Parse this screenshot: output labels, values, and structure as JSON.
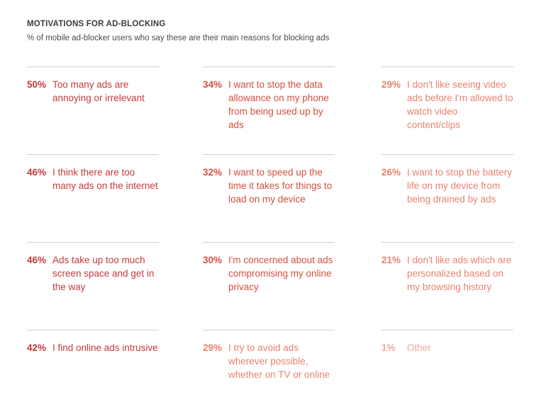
{
  "chart_data": {
    "type": "table",
    "title": "MOTIVATIONS FOR AD-BLOCKING",
    "subtitle": "% of mobile ad-blocker users who say these are their main reasons for blocking ads",
    "items": [
      {
        "value": "50%",
        "label": "Too many ads are annoying or irrelevant",
        "color": "#c23b3b"
      },
      {
        "value": "34%",
        "label": "I want to stop the data allowance on my phone from being used up by ads",
        "color": "#d2503f"
      },
      {
        "value": "29%",
        "label": "I don't like seeing video ads before I'm allowed to watch video content/clips",
        "color": "#e8836f"
      },
      {
        "value": "46%",
        "label": "I think there are too many ads on the internet",
        "color": "#c23b3b"
      },
      {
        "value": "32%",
        "label": "I want to speed up the time it takes for things to load on my device",
        "color": "#d2503f"
      },
      {
        "value": "26%",
        "label": "I want to stop the battery life on my device from being drained by ads",
        "color": "#e8836f"
      },
      {
        "value": "46%",
        "label": "Ads take up too much screen space and get in the way",
        "color": "#c23b3b"
      },
      {
        "value": "30%",
        "label": "I'm concerned about ads compromising my online privacy",
        "color": "#d2503f"
      },
      {
        "value": "21%",
        "label": "I don't like ads which are personalized based on my browsing history",
        "color": "#e8836f"
      },
      {
        "value": "42%",
        "label": "I find online ads intrusive",
        "color": "#c23b3b"
      },
      {
        "value": "29%",
        "label": "I try to avoid ads wherever possible, whether on TV or online",
        "color": "#e8836f"
      },
      {
        "value": "1%",
        "label": "Other",
        "color": "#f0a898"
      }
    ]
  }
}
